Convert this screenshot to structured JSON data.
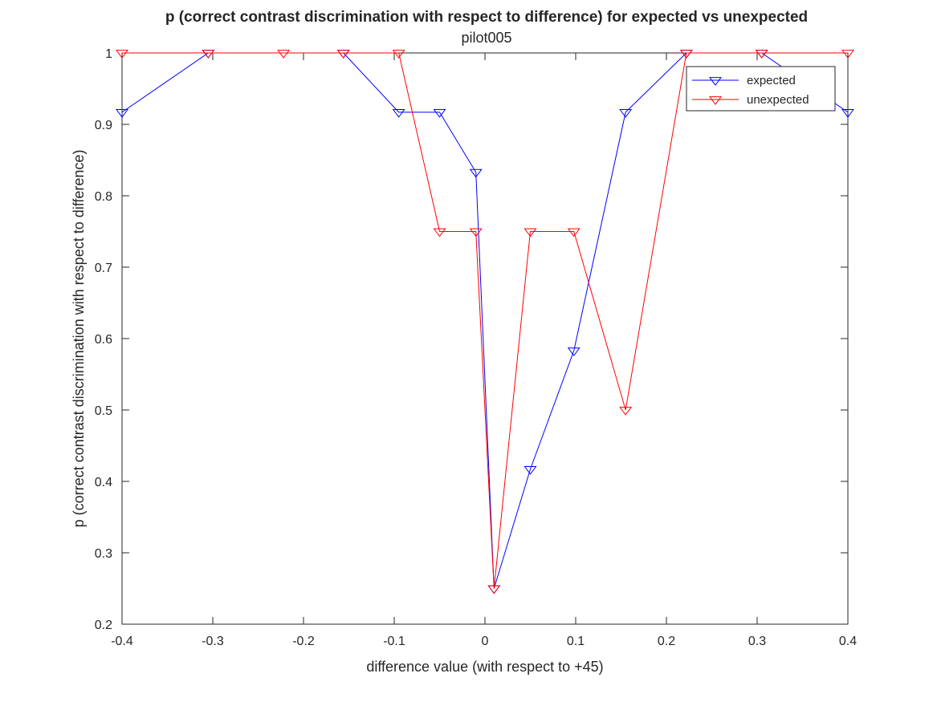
{
  "chart_data": {
    "type": "line",
    "title": "p (correct contrast discrimination with respect to difference) for expected vs unexpected",
    "subtitle": "pilot005",
    "xlabel": "difference value (with respect to +45)",
    "ylabel": "p (correct contrast discrimination with respect to difference)",
    "xlim": [
      -0.4,
      0.4
    ],
    "ylim": [
      0.2,
      1.0
    ],
    "xticks": [
      -0.4,
      -0.3,
      -0.2,
      -0.1,
      0,
      0.1,
      0.2,
      0.3,
      0.4
    ],
    "xtick_labels": [
      "-0.4",
      "-0.3",
      "-0.2",
      "-0.1",
      "0",
      "0.1",
      "0.2",
      "0.3",
      "0.4"
    ],
    "yticks": [
      0.2,
      0.3,
      0.4,
      0.5,
      0.6,
      0.7,
      0.8,
      0.9,
      1.0
    ],
    "ytick_labels": [
      "0.2",
      "0.3",
      "0.4",
      "0.5",
      "0.6",
      "0.7",
      "0.8",
      "0.9",
      "1"
    ],
    "grid": false,
    "legend_position": "top-right",
    "marker": "downward-triangle",
    "series": [
      {
        "name": "expected",
        "color": "#0000ff",
        "x": [
          -0.4,
          -0.305,
          -0.156,
          -0.095,
          -0.05,
          -0.01,
          0.01,
          0.05,
          0.098,
          0.155,
          0.222,
          0.305,
          0.4
        ],
        "y": [
          0.917,
          1.0,
          1.0,
          0.917,
          0.917,
          0.833,
          0.25,
          0.417,
          0.583,
          0.917,
          1.0,
          1.0,
          0.917
        ]
      },
      {
        "name": "unexpected",
        "color": "#ff0000",
        "x": [
          -0.4,
          -0.305,
          -0.222,
          -0.156,
          -0.095,
          -0.05,
          -0.01,
          0.01,
          0.05,
          0.098,
          0.155,
          0.222,
          0.305,
          0.4
        ],
        "y": [
          1.0,
          1.0,
          1.0,
          1.0,
          1.0,
          0.75,
          0.75,
          0.25,
          0.75,
          0.75,
          0.5,
          1.0,
          1.0,
          1.0
        ]
      }
    ]
  }
}
